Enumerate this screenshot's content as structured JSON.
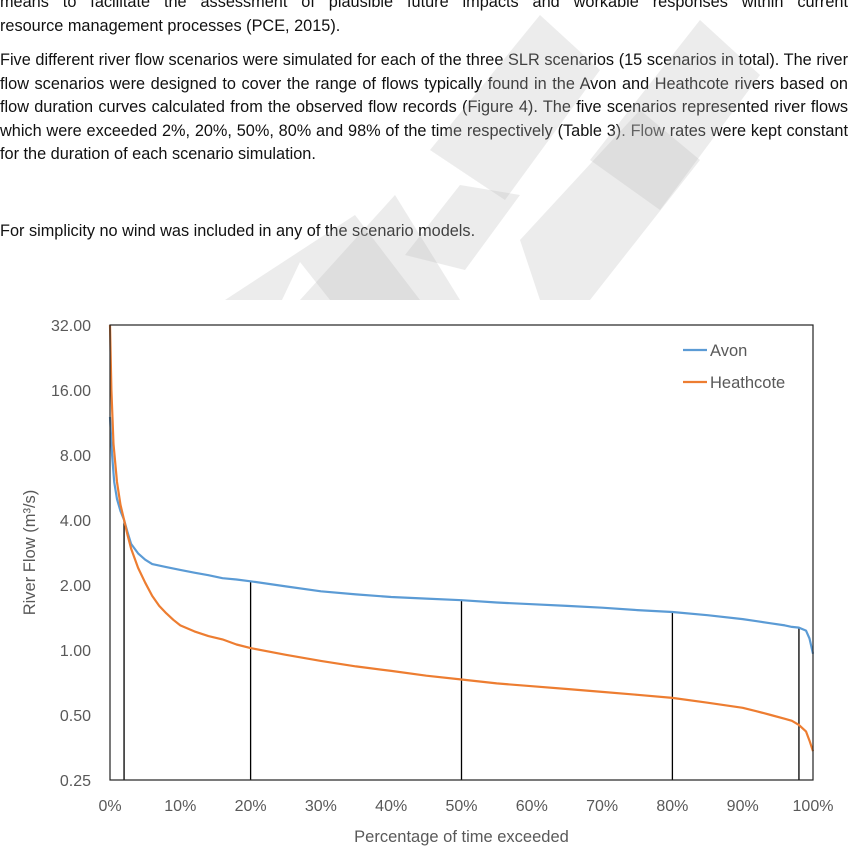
{
  "document": {
    "para1_lines": [
      "means to facilitate the assessment of plausible future impacts and workable responses within current",
      "resource management processes (PCE, 2015)."
    ],
    "para2": "Five different river flow scenarios were simulated for each of the three SLR scenarios (15 scenarios in total). The river flow scenarios were designed to cover the range of flows typically found in the Avon and Heathcote rivers based on flow duration curves calculated from the observed flow records (Figure 4). The five scenarios represented river flows which were exceeded 2%, 20%, 50%, 80% and 98% of the time respectively (Table 3). Flow rates were kept constant for the duration of each scenario simulation.",
    "para3": "For simplicity no wind was included in any of the scenario models."
  },
  "chart_data": {
    "type": "line",
    "xlabel": "Percentage of time exceeded",
    "ylabel": "River Flow (m³/s)",
    "y_scale": "log2",
    "ylim": [
      0.25,
      32
    ],
    "xlim": [
      0,
      100
    ],
    "x_ticks": [
      "0%",
      "10%",
      "20%",
      "30%",
      "40%",
      "50%",
      "60%",
      "70%",
      "80%",
      "90%",
      "100%"
    ],
    "y_ticks": [
      "0.25",
      "0.50",
      "1.00",
      "2.00",
      "4.00",
      "8.00",
      "16.00",
      "32.00"
    ],
    "y_tick_values": [
      0.25,
      0.5,
      1,
      2,
      4,
      8,
      16,
      32
    ],
    "legend_position": "top-right",
    "grid": false,
    "scenario_markers_x": [
      2,
      20,
      50,
      80,
      98
    ],
    "series": [
      {
        "name": "Avon",
        "color": "#5b9bd5",
        "x": [
          0,
          0.3,
          0.6,
          1,
          1.5,
          2,
          2.5,
          3,
          4,
          5,
          6,
          8,
          10,
          12,
          14,
          16,
          18,
          20,
          25,
          30,
          35,
          40,
          45,
          50,
          55,
          60,
          65,
          70,
          75,
          80,
          85,
          90,
          92,
          94,
          96,
          97,
          98,
          99,
          99.5,
          100
        ],
        "y": [
          12,
          8,
          6,
          5,
          4.4,
          4.0,
          3.5,
          3.1,
          2.8,
          2.62,
          2.5,
          2.42,
          2.35,
          2.28,
          2.22,
          2.15,
          2.12,
          2.08,
          1.97,
          1.87,
          1.81,
          1.76,
          1.73,
          1.7,
          1.66,
          1.63,
          1.6,
          1.57,
          1.53,
          1.5,
          1.45,
          1.39,
          1.36,
          1.33,
          1.3,
          1.28,
          1.27,
          1.23,
          1.13,
          0.96
        ]
      },
      {
        "name": "Heathcote",
        "color": "#ed7d31",
        "x": [
          0,
          0.2,
          0.5,
          1,
          1.5,
          2,
          2.5,
          3,
          4,
          5,
          6,
          7,
          8,
          9,
          10,
          12,
          14,
          16,
          18,
          20,
          25,
          30,
          35,
          40,
          45,
          50,
          55,
          60,
          65,
          70,
          75,
          80,
          85,
          90,
          92,
          94,
          96,
          97,
          98,
          99,
          99.5,
          100
        ],
        "y": [
          32,
          16,
          9,
          6,
          4.7,
          4.0,
          3.4,
          2.95,
          2.4,
          2.05,
          1.78,
          1.6,
          1.48,
          1.38,
          1.3,
          1.22,
          1.16,
          1.12,
          1.06,
          1.02,
          0.95,
          0.89,
          0.84,
          0.8,
          0.76,
          0.73,
          0.7,
          0.68,
          0.66,
          0.64,
          0.62,
          0.6,
          0.57,
          0.54,
          0.52,
          0.5,
          0.48,
          0.47,
          0.45,
          0.42,
          0.38,
          0.34
        ]
      }
    ]
  }
}
